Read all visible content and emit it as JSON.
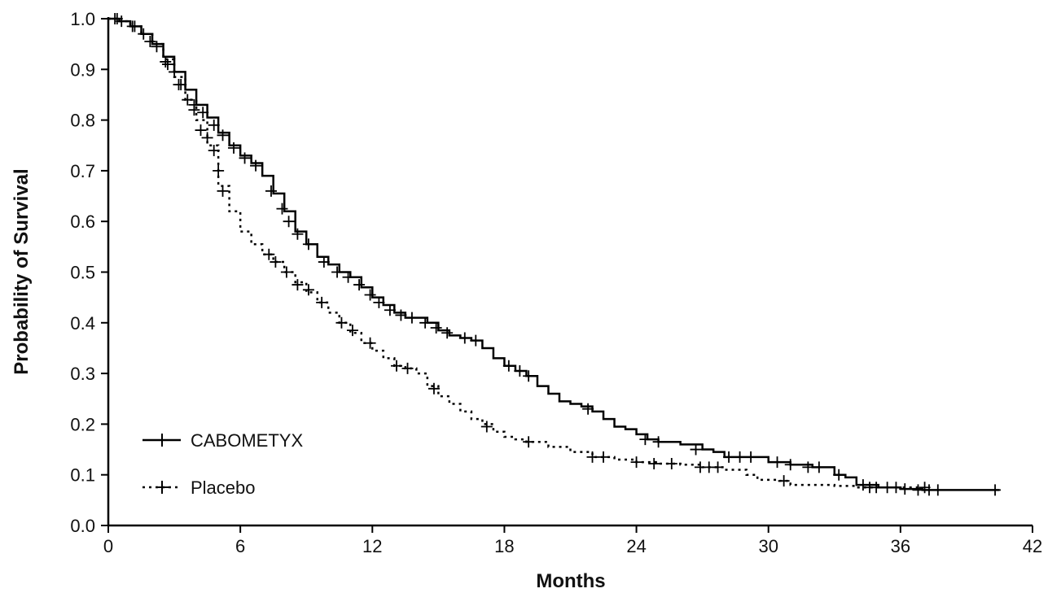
{
  "chart_data": {
    "type": "line",
    "title": "",
    "xlabel": "Months",
    "ylabel": "Probability of Survival",
    "xlim": [
      0,
      42
    ],
    "ylim": [
      0.0,
      1.0
    ],
    "x_ticks": [
      0,
      6,
      12,
      18,
      24,
      30,
      36,
      42
    ],
    "x_tick_labels": [
      "0",
      "6",
      "12",
      "18",
      "24",
      "30",
      "36",
      "42"
    ],
    "y_ticks": [
      0.0,
      0.1,
      0.2,
      0.3,
      0.4,
      0.5,
      0.6,
      0.7,
      0.8,
      0.9,
      1.0
    ],
    "y_tick_labels": [
      "0.0",
      "0.1",
      "0.2",
      "0.3",
      "0.4",
      "0.5",
      "0.6",
      "0.7",
      "0.8",
      "0.9",
      "1.0"
    ],
    "grid": false,
    "legend_position": "bottom-left",
    "series": [
      {
        "name": "CABOMETYX",
        "style": "solid",
        "color": "#000000",
        "points": [
          [
            0,
            1.0
          ],
          [
            0.5,
            0.995
          ],
          [
            1,
            0.985
          ],
          [
            1.5,
            0.97
          ],
          [
            2,
            0.95
          ],
          [
            2.5,
            0.925
          ],
          [
            3,
            0.895
          ],
          [
            3.5,
            0.86
          ],
          [
            4,
            0.83
          ],
          [
            4.5,
            0.805
          ],
          [
            5,
            0.775
          ],
          [
            5.5,
            0.75
          ],
          [
            6,
            0.73
          ],
          [
            6.5,
            0.715
          ],
          [
            7,
            0.69
          ],
          [
            7.5,
            0.655
          ],
          [
            8,
            0.62
          ],
          [
            8.5,
            0.58
          ],
          [
            9,
            0.555
          ],
          [
            9.5,
            0.53
          ],
          [
            10,
            0.515
          ],
          [
            10.5,
            0.5
          ],
          [
            11,
            0.49
          ],
          [
            11.5,
            0.47
          ],
          [
            12,
            0.45
          ],
          [
            12.5,
            0.435
          ],
          [
            13,
            0.42
          ],
          [
            13.5,
            0.41
          ],
          [
            14,
            0.41
          ],
          [
            14.5,
            0.4
          ],
          [
            15,
            0.385
          ],
          [
            15.5,
            0.375
          ],
          [
            16,
            0.37
          ],
          [
            16.5,
            0.365
          ],
          [
            17,
            0.35
          ],
          [
            17.5,
            0.33
          ],
          [
            18,
            0.315
          ],
          [
            18.5,
            0.305
          ],
          [
            19,
            0.295
          ],
          [
            19.5,
            0.275
          ],
          [
            20,
            0.26
          ],
          [
            20.5,
            0.245
          ],
          [
            21,
            0.24
          ],
          [
            21.5,
            0.235
          ],
          [
            22,
            0.225
          ],
          [
            22.5,
            0.21
          ],
          [
            23,
            0.195
          ],
          [
            23.5,
            0.19
          ],
          [
            24,
            0.18
          ],
          [
            24.5,
            0.17
          ],
          [
            25,
            0.165
          ],
          [
            26,
            0.16
          ],
          [
            27,
            0.15
          ],
          [
            27.5,
            0.145
          ],
          [
            28,
            0.135
          ],
          [
            29,
            0.135
          ],
          [
            30,
            0.125
          ],
          [
            31,
            0.12
          ],
          [
            32,
            0.115
          ],
          [
            33,
            0.1
          ],
          [
            33.5,
            0.095
          ],
          [
            34,
            0.08
          ],
          [
            35,
            0.075
          ],
          [
            36,
            0.072
          ],
          [
            37,
            0.07
          ],
          [
            38,
            0.07
          ],
          [
            39,
            0.07
          ],
          [
            40.5,
            0.07
          ]
        ],
        "censor_marks": [
          [
            0.3,
            1.0
          ],
          [
            0.6,
            0.995
          ],
          [
            1.1,
            0.985
          ],
          [
            1.6,
            0.97
          ],
          [
            2.2,
            0.945
          ],
          [
            2.7,
            0.91
          ],
          [
            3.0,
            0.895
          ],
          [
            3.3,
            0.87
          ],
          [
            3.9,
            0.83
          ],
          [
            4.3,
            0.815
          ],
          [
            4.8,
            0.79
          ],
          [
            5.2,
            0.77
          ],
          [
            5.7,
            0.745
          ],
          [
            6.2,
            0.725
          ],
          [
            6.7,
            0.71
          ],
          [
            7.4,
            0.66
          ],
          [
            7.9,
            0.625
          ],
          [
            8.2,
            0.6
          ],
          [
            8.6,
            0.575
          ],
          [
            9.1,
            0.555
          ],
          [
            9.8,
            0.52
          ],
          [
            10.4,
            0.5
          ],
          [
            10.9,
            0.49
          ],
          [
            11.4,
            0.475
          ],
          [
            11.9,
            0.455
          ],
          [
            12.3,
            0.44
          ],
          [
            12.8,
            0.425
          ],
          [
            13.3,
            0.415
          ],
          [
            13.8,
            0.41
          ],
          [
            14.4,
            0.4
          ],
          [
            14.9,
            0.39
          ],
          [
            15.4,
            0.38
          ],
          [
            16.2,
            0.37
          ],
          [
            16.7,
            0.365
          ],
          [
            18.2,
            0.315
          ],
          [
            18.7,
            0.305
          ],
          [
            19.1,
            0.295
          ],
          [
            21.8,
            0.23
          ],
          [
            24.4,
            0.17
          ],
          [
            25.0,
            0.165
          ],
          [
            26.7,
            0.15
          ],
          [
            28.2,
            0.135
          ],
          [
            28.7,
            0.135
          ],
          [
            29.2,
            0.135
          ],
          [
            30.4,
            0.125
          ],
          [
            31.0,
            0.12
          ],
          [
            31.8,
            0.115
          ],
          [
            32.3,
            0.115
          ],
          [
            33.2,
            0.1
          ],
          [
            34.3,
            0.08
          ],
          [
            34.9,
            0.075
          ],
          [
            35.4,
            0.075
          ],
          [
            36.2,
            0.072
          ],
          [
            36.8,
            0.07
          ],
          [
            37.3,
            0.07
          ],
          [
            37.7,
            0.07
          ],
          [
            40.3,
            0.07
          ]
        ]
      },
      {
        "name": "Placebo",
        "style": "dotted",
        "color": "#000000",
        "points": [
          [
            0,
            1.0
          ],
          [
            0.5,
            0.995
          ],
          [
            1,
            0.985
          ],
          [
            1.5,
            0.97
          ],
          [
            2,
            0.95
          ],
          [
            2.5,
            0.92
          ],
          [
            3,
            0.885
          ],
          [
            3.5,
            0.84
          ],
          [
            4,
            0.8
          ],
          [
            4.5,
            0.75
          ],
          [
            5,
            0.67
          ],
          [
            5.5,
            0.62
          ],
          [
            6,
            0.58
          ],
          [
            6.5,
            0.555
          ],
          [
            7,
            0.535
          ],
          [
            7.5,
            0.52
          ],
          [
            8,
            0.5
          ],
          [
            8.5,
            0.48
          ],
          [
            9,
            0.46
          ],
          [
            9.5,
            0.44
          ],
          [
            10,
            0.42
          ],
          [
            10.5,
            0.4
          ],
          [
            11,
            0.38
          ],
          [
            11.5,
            0.36
          ],
          [
            12,
            0.345
          ],
          [
            12.5,
            0.33
          ],
          [
            13,
            0.315
          ],
          [
            13.5,
            0.31
          ],
          [
            14,
            0.3
          ],
          [
            14.5,
            0.275
          ],
          [
            15,
            0.255
          ],
          [
            15.5,
            0.24
          ],
          [
            16,
            0.225
          ],
          [
            16.5,
            0.21
          ],
          [
            17,
            0.2
          ],
          [
            17.5,
            0.185
          ],
          [
            18,
            0.175
          ],
          [
            18.5,
            0.17
          ],
          [
            19,
            0.165
          ],
          [
            20,
            0.155
          ],
          [
            21,
            0.145
          ],
          [
            22,
            0.135
          ],
          [
            23,
            0.13
          ],
          [
            24,
            0.125
          ],
          [
            25,
            0.122
          ],
          [
            26,
            0.12
          ],
          [
            27,
            0.115
          ],
          [
            28,
            0.11
          ],
          [
            29,
            0.1
          ],
          [
            29.5,
            0.09
          ],
          [
            30,
            0.09
          ],
          [
            30.5,
            0.088
          ],
          [
            31,
            0.08
          ],
          [
            32,
            0.08
          ],
          [
            33,
            0.078
          ],
          [
            34,
            0.075
          ],
          [
            35,
            0.075
          ],
          [
            36,
            0.075
          ],
          [
            37,
            0.075
          ]
        ],
        "censor_marks": [
          [
            0.4,
            1.0
          ],
          [
            1.2,
            0.985
          ],
          [
            1.9,
            0.955
          ],
          [
            2.6,
            0.915
          ],
          [
            3.2,
            0.87
          ],
          [
            3.6,
            0.84
          ],
          [
            3.9,
            0.82
          ],
          [
            4.2,
            0.78
          ],
          [
            4.5,
            0.765
          ],
          [
            4.8,
            0.74
          ],
          [
            5.0,
            0.7
          ],
          [
            5.2,
            0.66
          ],
          [
            7.3,
            0.535
          ],
          [
            7.6,
            0.52
          ],
          [
            8.1,
            0.5
          ],
          [
            8.6,
            0.475
          ],
          [
            9.1,
            0.465
          ],
          [
            9.7,
            0.44
          ],
          [
            10.6,
            0.4
          ],
          [
            11.1,
            0.385
          ],
          [
            11.9,
            0.36
          ],
          [
            13.1,
            0.315
          ],
          [
            13.6,
            0.31
          ],
          [
            14.8,
            0.27
          ],
          [
            17.2,
            0.195
          ],
          [
            19.1,
            0.165
          ],
          [
            22.0,
            0.135
          ],
          [
            22.5,
            0.135
          ],
          [
            24.0,
            0.125
          ],
          [
            24.8,
            0.122
          ],
          [
            25.6,
            0.122
          ],
          [
            26.9,
            0.115
          ],
          [
            27.3,
            0.115
          ],
          [
            27.7,
            0.115
          ],
          [
            30.7,
            0.088
          ],
          [
            34.6,
            0.075
          ],
          [
            35.8,
            0.075
          ],
          [
            37.1,
            0.075
          ]
        ]
      }
    ]
  }
}
